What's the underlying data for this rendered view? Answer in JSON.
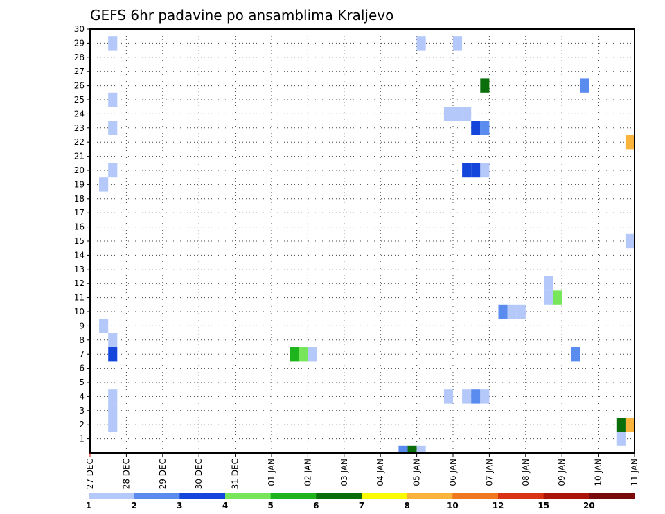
{
  "chart_data": {
    "type": "heatmap",
    "title": "GEFS 6hr padavine po ansamblima Kraljevo",
    "x_tick_labels": [
      "27 DEC",
      "28 DEC",
      "29 DEC",
      "30 DEC",
      "31 DEC",
      "01 JAN",
      "02 JAN",
      "03 JAN",
      "04 JAN",
      "05 JAN",
      "06 JAN",
      "07 JAN",
      "08 JAN",
      "09 JAN",
      "10 JAN",
      "11 JAN"
    ],
    "y_tick_labels": [
      "1",
      "2",
      "3",
      "4",
      "5",
      "6",
      "7",
      "8",
      "9",
      "10",
      "11",
      "12",
      "13",
      "14",
      "15",
      "16",
      "17",
      "18",
      "19",
      "20",
      "21",
      "22",
      "23",
      "24",
      "25",
      "26",
      "27",
      "28",
      "29",
      "30"
    ],
    "xlim": [
      0,
      60
    ],
    "ylim": [
      0,
      30
    ],
    "x_step": "6hr",
    "grid": true,
    "colorbar": {
      "labels": [
        "1",
        "2",
        "3",
        "4",
        "5",
        "6",
        "7",
        "8",
        "10",
        "12",
        "15",
        "20"
      ],
      "colors": [
        "#b4c8fa",
        "#5a8cf0",
        "#1446dc",
        "#78e65a",
        "#1eb41e",
        "#0a6e0a",
        "#fafa00",
        "#fab43c",
        "#f0781e",
        "#dc3214",
        "#aa140a",
        "#780a0a"
      ]
    },
    "cells": [
      {
        "x": 2,
        "y": 29,
        "c": 0
      },
      {
        "x": 2,
        "y": 25,
        "c": 0
      },
      {
        "x": 2,
        "y": 23,
        "c": 0
      },
      {
        "x": 2,
        "y": 20,
        "c": 0
      },
      {
        "x": 1,
        "y": 19,
        "c": 0
      },
      {
        "x": 1,
        "y": 9,
        "c": 0
      },
      {
        "x": 2,
        "y": 8,
        "c": 0
      },
      {
        "x": 2,
        "y": 7,
        "c": 2
      },
      {
        "x": 2,
        "y": 4,
        "c": 0
      },
      {
        "x": 2,
        "y": 3,
        "c": 0
      },
      {
        "x": 2,
        "y": 2,
        "c": 0
      },
      {
        "x": 22,
        "y": 7,
        "c": 4
      },
      {
        "x": 23,
        "y": 7,
        "c": 3
      },
      {
        "x": 24,
        "y": 7,
        "c": 0
      },
      {
        "x": 34,
        "y": 0,
        "c": 1
      },
      {
        "x": 35,
        "y": 0,
        "c": 5
      },
      {
        "x": 36,
        "y": 0,
        "c": 0
      },
      {
        "x": 36,
        "y": 29,
        "c": 0
      },
      {
        "x": 40,
        "y": 29,
        "c": 0
      },
      {
        "x": 39,
        "y": 24,
        "c": 0
      },
      {
        "x": 40,
        "y": 24,
        "c": 0
      },
      {
        "x": 41,
        "y": 24,
        "c": 0
      },
      {
        "x": 42,
        "y": 23,
        "c": 2
      },
      {
        "x": 43,
        "y": 23,
        "c": 1
      },
      {
        "x": 41,
        "y": 20,
        "c": 2
      },
      {
        "x": 42,
        "y": 20,
        "c": 2
      },
      {
        "x": 43,
        "y": 20,
        "c": 0
      },
      {
        "x": 39,
        "y": 4,
        "c": 0
      },
      {
        "x": 41,
        "y": 4,
        "c": 0
      },
      {
        "x": 42,
        "y": 4,
        "c": 1
      },
      {
        "x": 43,
        "y": 4,
        "c": 0
      },
      {
        "x": 43,
        "y": 26,
        "c": 5
      },
      {
        "x": 45,
        "y": 10,
        "c": 1
      },
      {
        "x": 46,
        "y": 10,
        "c": 0
      },
      {
        "x": 47,
        "y": 10,
        "c": 0
      },
      {
        "x": 50,
        "y": 12,
        "c": 0
      },
      {
        "x": 50,
        "y": 11,
        "c": 0
      },
      {
        "x": 51,
        "y": 11,
        "c": 3
      },
      {
        "x": 53,
        "y": 7,
        "c": 1
      },
      {
        "x": 54,
        "y": 26,
        "c": 1
      },
      {
        "x": 59,
        "y": 22,
        "c": 7
      },
      {
        "x": 59,
        "y": 15,
        "c": 0
      },
      {
        "x": 59,
        "y": 2,
        "c": 7
      },
      {
        "x": 58,
        "y": 2,
        "c": 5
      },
      {
        "x": 58,
        "y": 1,
        "c": 0
      }
    ]
  }
}
